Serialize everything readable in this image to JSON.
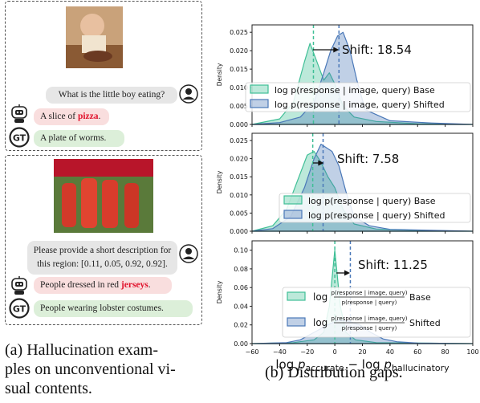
{
  "left": {
    "example1": {
      "question": "What is the little boy eating?",
      "answer_prefix": "A slice of ",
      "answer_highlight": "pizza",
      "answer_suffix": ".",
      "gt_label": "GT",
      "gt_answer": "A plate of worms."
    },
    "example2": {
      "question_line1": "Please provide a short description for",
      "question_line2": "this region: [0.11, 0.05, 0.92, 0.92].",
      "answer_prefix": "People dressed in red ",
      "answer_highlight": "jerseys",
      "answer_suffix": ".",
      "gt_label": "GT",
      "gt_answer": "People wearing lobster costumes."
    },
    "caption_line1": "(a)  Hallucination  exam-",
    "caption_line2": "ples on unconventional vi-",
    "caption_line3": "sual contents."
  },
  "right": {
    "caption": "(b) Distribution gaps."
  },
  "chart_data": [
    {
      "type": "area",
      "ylabel": "Density",
      "ylim": [
        0,
        0.027
      ],
      "xlim": [
        -60,
        100
      ],
      "yticks": [
        "0.000",
        "0.005",
        "0.010",
        "0.015",
        "0.020",
        "0.025"
      ],
      "annotation": "Shift: 18.54",
      "series": [
        {
          "name": "log p(response | image, query) Base",
          "color": "#3fbf96",
          "mean": -15.5
        },
        {
          "name": "log p(response | image, query) Shifted",
          "color": "#4a78b8",
          "mean": 3
        }
      ]
    },
    {
      "type": "area",
      "ylabel": "Density",
      "ylim": [
        0,
        0.027
      ],
      "xlim": [
        -60,
        100
      ],
      "yticks": [
        "0.000",
        "0.005",
        "0.010",
        "0.015",
        "0.020",
        "0.025"
      ],
      "annotation": "Shift: 7.58",
      "series": [
        {
          "name": "log p(response | query) Base",
          "color": "#3fbf96",
          "mean": -16
        },
        {
          "name": "log p(response | query) Shifted",
          "color": "#4a78b8",
          "mean": -8.5
        }
      ]
    },
    {
      "type": "area",
      "ylabel": "Density",
      "ylim": [
        0,
        0.11
      ],
      "xlim": [
        -60,
        100
      ],
      "yticks": [
        "0.00",
        "0.02",
        "0.04",
        "0.06",
        "0.08",
        "0.10"
      ],
      "xticks": [
        "−60",
        "−40",
        "−20",
        "0",
        "20",
        "40",
        "60",
        "80",
        "100"
      ],
      "xlabel": "log p_accurate − log p_hallucinatory",
      "annotation": "Shift: 11.25",
      "series": [
        {
          "name": "Base",
          "color": "#3fbf96",
          "mean": 0
        },
        {
          "name": "Shifted",
          "color": "#4a78b8",
          "mean": 11.25
        }
      ],
      "legend_fraction_num": "p(response | image, query)",
      "legend_fraction_den": "p(response | query)"
    }
  ]
}
